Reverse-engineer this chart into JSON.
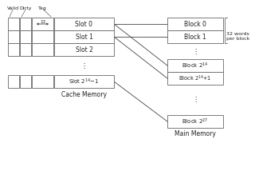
{
  "bg_color": "#ffffff",
  "cache_slots": [
    "Slot 0",
    "Slot 1",
    "Slot 2"
  ],
  "cache_label": "Cache Memory",
  "main_label": "Main Memory",
  "side_note": "32 words\nper block",
  "valid_label": "Valid",
  "dirty_label": "Dirty",
  "tag_label": "Tag",
  "tag_text": "↓13→",
  "dots": "⋮",
  "ec": "#666666",
  "tc": "#222222"
}
